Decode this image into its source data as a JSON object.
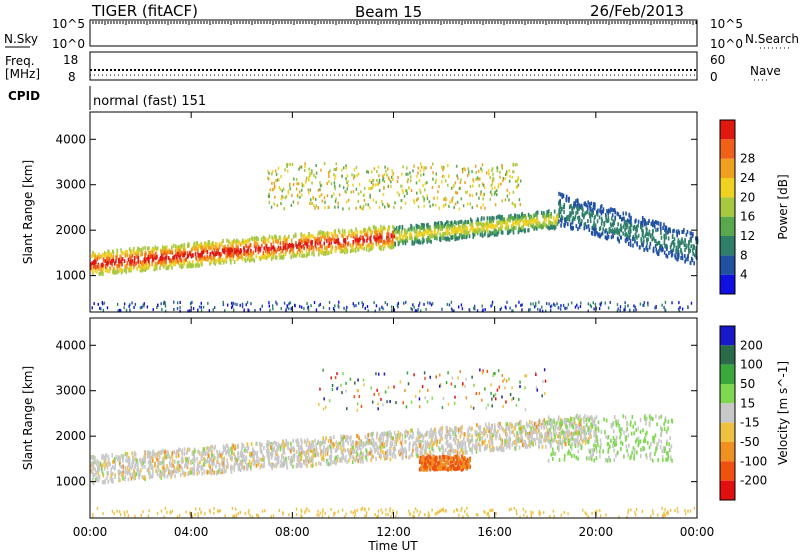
{
  "header": {
    "radar": "TIGER (fitACF)",
    "beam": "Beam 15",
    "date": "26/Feb/2013"
  },
  "top_panels": {
    "nsky_label": "N.Sky",
    "nsearch_label": "N.Search",
    "freq_label_line1": "Freq.",
    "freq_label_line2": "[MHz]",
    "nave_label": "Nave",
    "cpid_label": "CPID",
    "cpid_text": "normal (fast) 151",
    "nsky_ticks": [
      "10^5",
      "10^0"
    ],
    "nsearch_ticks": [
      "10^5",
      "10^0"
    ],
    "freq_ticks": [
      "18",
      "8"
    ],
    "nave_ticks": [
      "60",
      "0"
    ]
  },
  "chart_data": [
    {
      "type": "heatmap",
      "name": "power",
      "ylabel": "Slant Range [km]",
      "xlabel": "Time UT",
      "xlim": [
        0,
        24
      ],
      "ylim": [
        200,
        4600
      ],
      "yticks": [
        1000,
        2000,
        3000,
        4000
      ],
      "xticks": [
        "00:00",
        "04:00",
        "08:00",
        "12:00",
        "16:00",
        "20:00",
        "00:00"
      ],
      "colorbar": {
        "label": "Power [dB]",
        "ticks": [
          4,
          8,
          12,
          16,
          20,
          24,
          28
        ],
        "colors": [
          "#1010e0",
          "#2050a0",
          "#2e7e6a",
          "#5aa84e",
          "#a8c840",
          "#f0d020",
          "#f0a020",
          "#f06018",
          "#e01810"
        ]
      },
      "features": [
        {
          "kind": "band",
          "from_ut": [
            0,
            1300
          ],
          "to_ut": [
            12,
            1900
          ],
          "peak_power": 26
        },
        {
          "kind": "band",
          "from_ut": [
            12,
            1900
          ],
          "to_ut": [
            18.5,
            2300
          ],
          "peak_power": 20
        },
        {
          "kind": "arc",
          "from_ut": [
            17.5,
            2500
          ],
          "to_ut": [
            24,
            1600
          ],
          "peak_power": 10
        }
      ]
    },
    {
      "type": "heatmap",
      "name": "velocity",
      "ylabel": "Slant Range [km]",
      "xlabel": "Time UT",
      "xlim": [
        0,
        24
      ],
      "ylim": [
        200,
        4600
      ],
      "yticks": [
        1000,
        2000,
        3000,
        4000
      ],
      "xticks": [
        "00:00",
        "04:00",
        "08:00",
        "12:00",
        "16:00",
        "20:00",
        "00:00"
      ],
      "colorbar": {
        "label": "Velocity [m s^-1]",
        "ticks": [
          200,
          100,
          50,
          15,
          -15,
          -50,
          -100,
          -200
        ],
        "colors": [
          "#1818c8",
          "#2a6a48",
          "#3aa83a",
          "#80d850",
          "#c8c8c8",
          "#f0c040",
          "#f09020",
          "#f05010",
          "#e01010"
        ]
      },
      "features": [
        {
          "kind": "band",
          "from_ut": [
            0,
            1300
          ],
          "to_ut": [
            12,
            1700
          ],
          "velocity": 0
        },
        {
          "kind": "patch",
          "ut": [
            13,
            15
          ],
          "range": [
            1300,
            1600
          ],
          "velocity": -80
        },
        {
          "kind": "patch",
          "ut": [
            19,
            21
          ],
          "range": [
            1600,
            2200
          ],
          "velocity": 40
        }
      ]
    }
  ]
}
